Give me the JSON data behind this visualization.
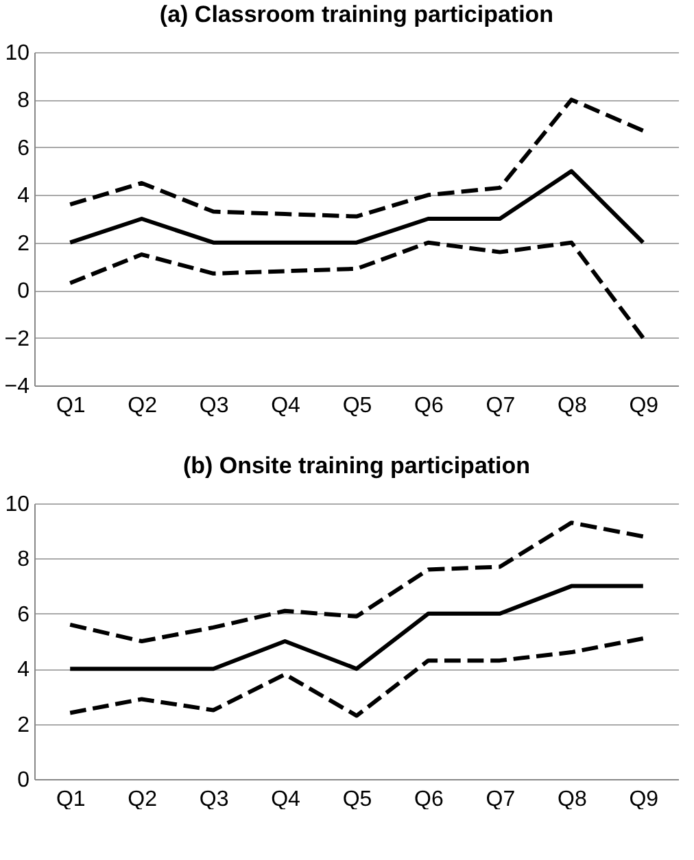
{
  "chart_data": [
    {
      "type": "line",
      "title": "(a) Classroom training participation",
      "categories": [
        "Q1",
        "Q2",
        "Q3",
        "Q4",
        "Q5",
        "Q6",
        "Q7",
        "Q8",
        "Q9"
      ],
      "series": [
        {
          "color": "#000000",
          "line_style": "solid",
          "values": [
            2,
            3,
            2,
            2,
            2,
            3,
            3,
            5,
            2
          ]
        },
        {
          "color": "#000000",
          "line_style": "dashed",
          "values": [
            3.6,
            4.5,
            3.3,
            3.2,
            3.1,
            4.0,
            4.3,
            8.0,
            6.7
          ]
        },
        {
          "color": "#000000",
          "line_style": "dashed",
          "values": [
            0.3,
            1.5,
            0.7,
            0.8,
            0.9,
            2.0,
            1.6,
            2.0,
            -2.0
          ]
        }
      ],
      "ylim": [
        -4,
        10
      ],
      "yticks": [
        -4,
        -2,
        0,
        2,
        4,
        6,
        8,
        10
      ],
      "grid": "y"
    },
    {
      "type": "line",
      "title": "(b) Onsite training participation",
      "categories": [
        "Q1",
        "Q2",
        "Q3",
        "Q4",
        "Q5",
        "Q6",
        "Q7",
        "Q8",
        "Q9"
      ],
      "series": [
        {
          "color": "#000000",
          "line_style": "solid",
          "values": [
            4,
            4,
            4,
            5,
            4,
            6,
            6,
            7,
            7
          ]
        },
        {
          "color": "#000000",
          "line_style": "dashed",
          "values": [
            5.6,
            5.0,
            5.5,
            6.1,
            5.9,
            7.6,
            7.7,
            9.3,
            8.8
          ]
        },
        {
          "color": "#000000",
          "line_style": "dashed",
          "values": [
            2.4,
            2.9,
            2.5,
            3.8,
            2.3,
            4.3,
            4.3,
            4.6,
            5.1
          ]
        }
      ],
      "ylim": [
        0,
        10
      ],
      "yticks": [
        0,
        2,
        4,
        6,
        8,
        10
      ],
      "grid": "y"
    }
  ]
}
